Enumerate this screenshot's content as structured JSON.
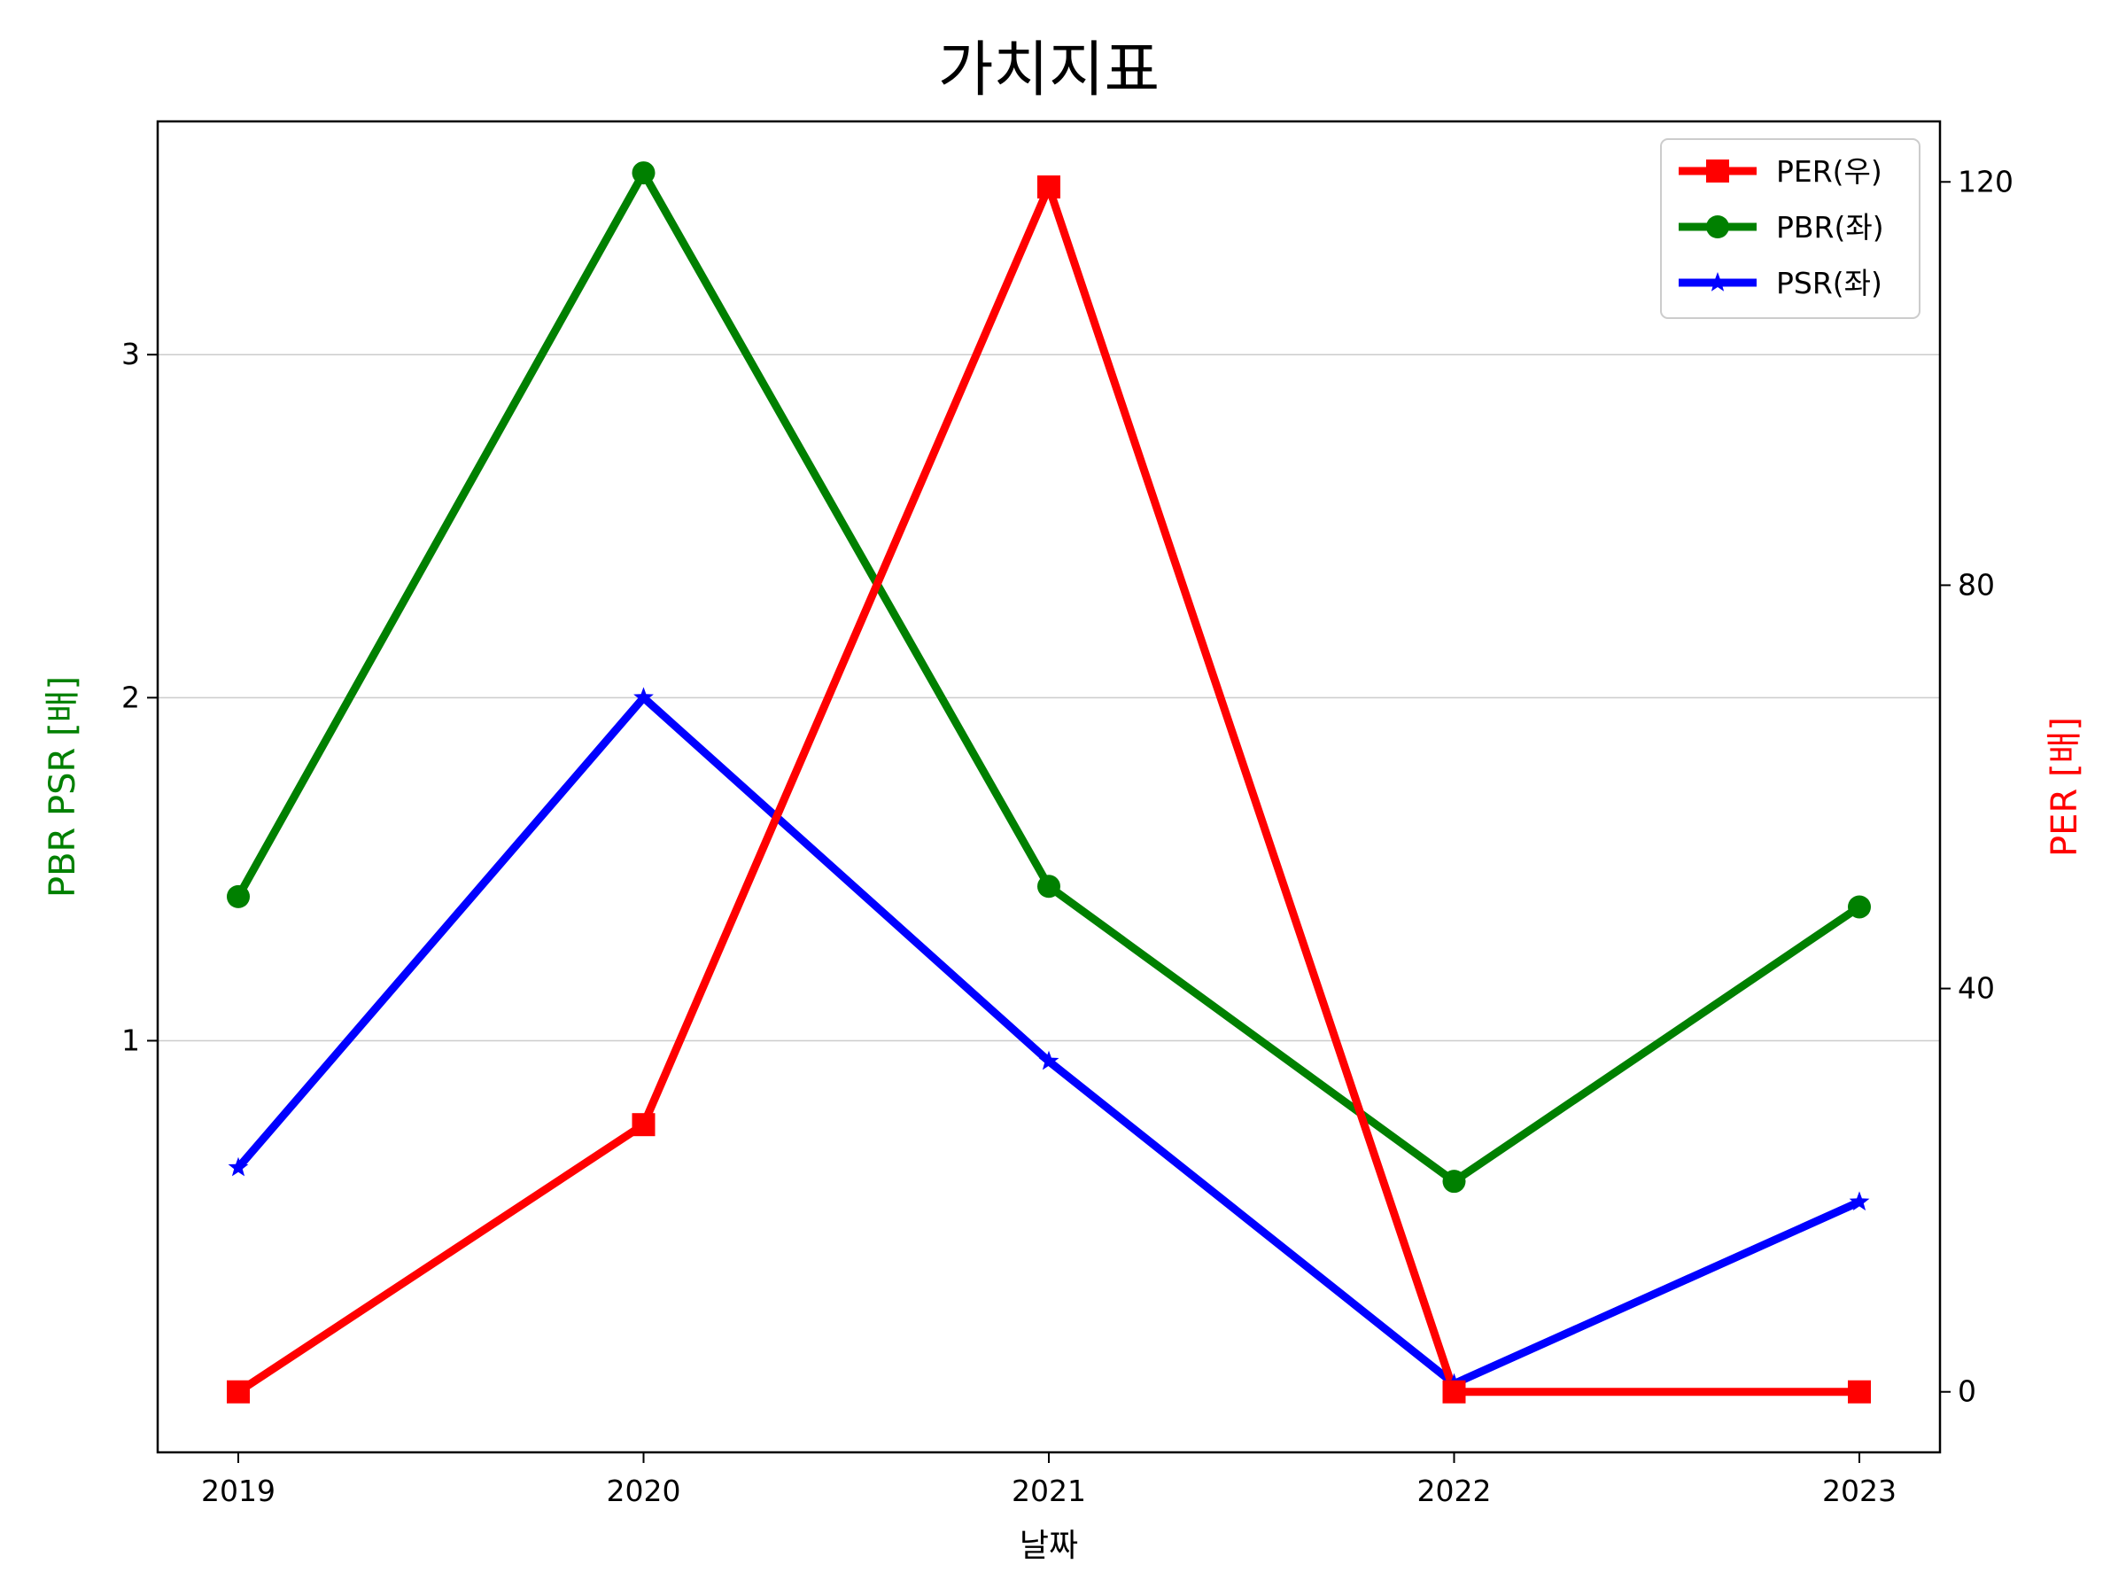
{
  "chart_data": {
    "type": "line",
    "title": "가치지표",
    "xlabel": "날짜",
    "ylabel_left": "PBR PSR [배]",
    "ylabel_right": "PER [배]",
    "categories": [
      "2019",
      "2020",
      "2021",
      "2022",
      "2023"
    ],
    "left_axis": {
      "ylim": [
        -0.2,
        3.68
      ],
      "ticks": [
        "1",
        "2",
        "3"
      ],
      "tick_values": [
        1,
        2,
        3
      ],
      "label_color": "#008000"
    },
    "right_axis": {
      "ylim": [
        -6,
        126
      ],
      "ticks": [
        "0",
        "40",
        "80",
        "120"
      ],
      "tick_values": [
        0,
        40,
        80,
        120
      ],
      "label_color": "#ff0000"
    },
    "grid": "horizontal (left axis)",
    "legend_position": "top-right",
    "series": [
      {
        "name": "PER(우)",
        "axis": "right",
        "color": "#ff0000",
        "marker": "square",
        "values": [
          0,
          26.5,
          119.5,
          0,
          0
        ]
      },
      {
        "name": "PBR(좌)",
        "axis": "left",
        "color": "#008000",
        "marker": "circle",
        "values": [
          1.42,
          3.53,
          1.45,
          0.59,
          1.39
        ]
      },
      {
        "name": "PSR(좌)",
        "axis": "left",
        "color": "#0000ff",
        "marker": "star",
        "values": [
          0.63,
          2.0,
          0.94,
          0.0,
          0.53
        ]
      }
    ]
  }
}
